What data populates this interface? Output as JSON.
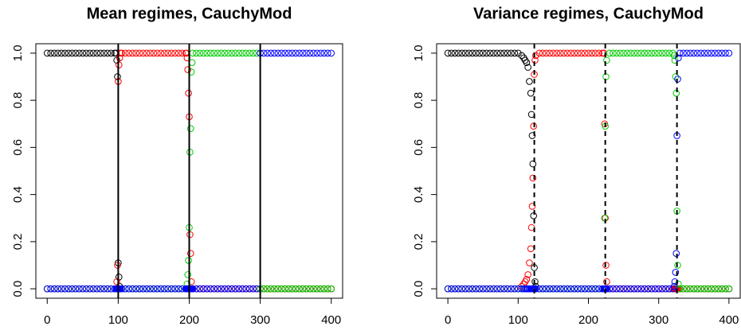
{
  "chart_data": [
    {
      "type": "scatter",
      "title": "Mean regimes, CauchyMod",
      "x": [
        0,
        5,
        10,
        15,
        20,
        25,
        30,
        35,
        40,
        45,
        50,
        55,
        60,
        65,
        70,
        75,
        80,
        85,
        90,
        95,
        97,
        98,
        99,
        100,
        101,
        102,
        103,
        105,
        110,
        115,
        120,
        125,
        130,
        135,
        140,
        145,
        150,
        155,
        160,
        165,
        170,
        175,
        180,
        185,
        190,
        195,
        196,
        197,
        198,
        199,
        200,
        201,
        202,
        203,
        204,
        205,
        210,
        215,
        220,
        225,
        230,
        235,
        240,
        245,
        250,
        255,
        260,
        265,
        270,
        275,
        280,
        285,
        290,
        295,
        300,
        305,
        310,
        315,
        320,
        325,
        330,
        335,
        340,
        345,
        350,
        355,
        360,
        365,
        370,
        375,
        380,
        385,
        390,
        395,
        400
      ],
      "series": [
        {
          "color": "#000000",
          "values": [
            1,
            1,
            1,
            1,
            1,
            1,
            1,
            1,
            1,
            1,
            1,
            1,
            1,
            1,
            1,
            1,
            1,
            1,
            1,
            1,
            1,
            0.97,
            0.9,
            0.11,
            0.05,
            0.01,
            0,
            0,
            0,
            0,
            0,
            0,
            0,
            0,
            0,
            0,
            0,
            0,
            0,
            0,
            0,
            0,
            0,
            0,
            0,
            0,
            0,
            0,
            0,
            0,
            0,
            0,
            0,
            0,
            0,
            0,
            0,
            0,
            0,
            0,
            0,
            0,
            0,
            0,
            0,
            0,
            0,
            0,
            0,
            0,
            0,
            0,
            0,
            0,
            0,
            0,
            0,
            0,
            0,
            0,
            0,
            0,
            0,
            0,
            0,
            0,
            0,
            0,
            0,
            0,
            0,
            0,
            0,
            0,
            0
          ]
        },
        {
          "color": "#ff0000",
          "values": [
            0,
            0,
            0,
            0,
            0,
            0,
            0,
            0,
            0,
            0,
            0,
            0,
            0,
            0,
            0,
            0,
            0,
            0,
            0,
            0,
            0,
            0.03,
            0.1,
            0.88,
            0.95,
            0.98,
            1,
            1,
            1,
            1,
            1,
            1,
            1,
            1,
            1,
            1,
            1,
            1,
            1,
            1,
            1,
            1,
            1,
            1,
            1,
            1,
            1,
            0.98,
            0.93,
            0.83,
            0.73,
            0.23,
            0.15,
            0.03,
            0,
            0,
            0,
            0,
            0,
            0,
            0,
            0,
            0,
            0,
            0,
            0,
            0,
            0,
            0,
            0,
            0,
            0,
            0,
            0,
            0,
            0,
            0,
            0,
            0,
            0,
            0,
            0,
            0,
            0,
            0,
            0,
            0,
            0,
            0,
            0,
            0,
            0,
            0,
            0,
            0
          ]
        },
        {
          "color": "#00cd00",
          "values": [
            0,
            0,
            0,
            0,
            0,
            0,
            0,
            0,
            0,
            0,
            0,
            0,
            0,
            0,
            0,
            0,
            0,
            0,
            0,
            0,
            0,
            0,
            0,
            0,
            0,
            0,
            0,
            0,
            0,
            0,
            0,
            0,
            0,
            0,
            0,
            0,
            0,
            0,
            0,
            0,
            0,
            0,
            0,
            0,
            0,
            0,
            0,
            0.02,
            0.06,
            0.12,
            0.26,
            0.58,
            0.68,
            0.92,
            0.96,
            1,
            1,
            1,
            1,
            1,
            1,
            1,
            1,
            1,
            1,
            1,
            1,
            1,
            1,
            1,
            1,
            1,
            1,
            1,
            0,
            0,
            0,
            0,
            0,
            0,
            0,
            0,
            0,
            0,
            0,
            0,
            0,
            0,
            0,
            0,
            0,
            0,
            0,
            0,
            0
          ]
        },
        {
          "color": "#0000ff",
          "values": [
            0,
            0,
            0,
            0,
            0,
            0,
            0,
            0,
            0,
            0,
            0,
            0,
            0,
            0,
            0,
            0,
            0,
            0,
            0,
            0,
            0,
            0,
            0,
            0,
            0,
            0,
            0,
            0,
            0,
            0,
            0,
            0,
            0,
            0,
            0,
            0,
            0,
            0,
            0,
            0,
            0,
            0,
            0,
            0,
            0,
            0,
            0,
            0,
            0,
            0,
            0,
            0,
            0,
            0,
            0,
            0,
            0,
            0,
            0,
            0,
            0,
            0,
            0,
            0,
            0,
            0,
            0,
            0,
            0,
            0,
            0,
            0,
            0,
            0,
            1,
            1,
            1,
            1,
            1,
            1,
            1,
            1,
            1,
            1,
            1,
            1,
            1,
            1,
            1,
            1,
            1,
            1,
            1,
            1,
            1
          ]
        }
      ],
      "vlines": [
        100,
        200,
        300
      ],
      "vline_style": "solid",
      "xlim": [
        -16,
        416
      ],
      "ylim": [
        -0.04,
        1.04
      ],
      "xticks": [
        0,
        100,
        200,
        300,
        400
      ],
      "yticks": [
        {
          "value": 0,
          "label": "0.0"
        },
        {
          "value": 0.2,
          "label": "0.2"
        },
        {
          "value": 0.4,
          "label": "0.4"
        },
        {
          "value": 0.6,
          "label": "0.6"
        },
        {
          "value": 0.8,
          "label": "0.8"
        },
        {
          "value": 1,
          "label": "1.0"
        }
      ]
    },
    {
      "type": "scatter",
      "title": "Variance regimes, CauchyMod",
      "x": [
        0,
        5,
        10,
        15,
        20,
        25,
        30,
        35,
        40,
        45,
        50,
        55,
        60,
        65,
        70,
        75,
        80,
        85,
        90,
        95,
        100,
        105,
        108,
        110,
        112,
        114,
        116,
        118,
        119,
        120,
        121,
        122,
        123,
        124,
        125,
        130,
        135,
        140,
        145,
        150,
        155,
        160,
        165,
        170,
        175,
        180,
        185,
        190,
        195,
        200,
        205,
        210,
        215,
        220,
        222,
        223,
        224,
        225,
        226,
        230,
        235,
        240,
        245,
        250,
        255,
        260,
        265,
        270,
        275,
        280,
        285,
        290,
        295,
        300,
        305,
        310,
        315,
        320,
        322,
        323,
        324,
        325,
        326,
        327,
        328,
        330,
        335,
        340,
        345,
        350,
        355,
        360,
        365,
        370,
        375,
        380,
        385,
        390,
        395,
        400
      ],
      "series": [
        {
          "color": "#000000",
          "values": [
            1,
            1,
            1,
            1,
            1,
            1,
            1,
            1,
            1,
            1,
            1,
            1,
            1,
            1,
            1,
            1,
            1,
            1,
            1,
            1,
            1,
            0.99,
            0.98,
            0.97,
            0.96,
            0.94,
            0.88,
            0.83,
            0.74,
            0.65,
            0.53,
            0.31,
            0.09,
            0.03,
            0.01,
            0,
            0,
            0,
            0,
            0,
            0,
            0,
            0,
            0,
            0,
            0,
            0,
            0,
            0,
            0,
            0,
            0,
            0,
            0,
            0,
            0,
            0,
            0,
            0,
            0,
            0,
            0,
            0,
            0,
            0,
            0,
            0,
            0,
            0,
            0,
            0,
            0,
            0,
            0,
            0,
            0,
            0,
            0,
            0,
            0,
            0,
            0,
            0,
            0,
            0,
            0,
            0,
            0,
            0,
            0,
            0,
            0,
            0,
            0,
            0,
            0,
            0,
            0,
            0,
            0
          ]
        },
        {
          "color": "#ff0000",
          "values": [
            0,
            0,
            0,
            0,
            0,
            0,
            0,
            0,
            0,
            0,
            0,
            0,
            0,
            0,
            0,
            0,
            0,
            0,
            0,
            0,
            0,
            0.01,
            0.02,
            0.03,
            0.04,
            0.06,
            0.11,
            0.17,
            0.26,
            0.35,
            0.47,
            0.69,
            0.91,
            0.97,
            0.99,
            1,
            1,
            1,
            1,
            1,
            1,
            1,
            1,
            1,
            1,
            1,
            1,
            1,
            1,
            1,
            1,
            1,
            1,
            1,
            1,
            0.7,
            0.3,
            0.1,
            0.03,
            0,
            0,
            0,
            0,
            0,
            0,
            0,
            0,
            0,
            0,
            0,
            0,
            0,
            0,
            0,
            0,
            0,
            0,
            0,
            0,
            0,
            0,
            0,
            0,
            0,
            0,
            0,
            0,
            0,
            0,
            0,
            0,
            0,
            0,
            0,
            0,
            0,
            0,
            0,
            0,
            0
          ]
        },
        {
          "color": "#00cd00",
          "values": [
            0,
            0,
            0,
            0,
            0,
            0,
            0,
            0,
            0,
            0,
            0,
            0,
            0,
            0,
            0,
            0,
            0,
            0,
            0,
            0,
            0,
            0,
            0,
            0,
            0,
            0,
            0,
            0,
            0,
            0,
            0,
            0,
            0,
            0,
            0,
            0,
            0,
            0,
            0,
            0,
            0,
            0,
            0,
            0,
            0,
            0,
            0,
            0,
            0,
            0,
            0,
            0,
            0,
            0,
            0,
            0.3,
            0.69,
            0.9,
            0.97,
            1,
            1,
            1,
            1,
            1,
            1,
            1,
            1,
            1,
            1,
            1,
            1,
            1,
            1,
            1,
            1,
            1,
            1,
            1,
            0.99,
            0.97,
            0.9,
            0.83,
            0.33,
            0.1,
            0.02,
            0,
            0,
            0,
            0,
            0,
            0,
            0,
            0,
            0,
            0,
            0,
            0,
            0,
            0,
            0
          ]
        },
        {
          "color": "#0000ff",
          "values": [
            0,
            0,
            0,
            0,
            0,
            0,
            0,
            0,
            0,
            0,
            0,
            0,
            0,
            0,
            0,
            0,
            0,
            0,
            0,
            0,
            0,
            0,
            0,
            0,
            0,
            0,
            0,
            0,
            0,
            0,
            0,
            0,
            0,
            0,
            0,
            0,
            0,
            0,
            0,
            0,
            0,
            0,
            0,
            0,
            0,
            0,
            0,
            0,
            0,
            0,
            0,
            0,
            0,
            0,
            0,
            0,
            0,
            0,
            0,
            0,
            0,
            0,
            0,
            0,
            0,
            0,
            0,
            0,
            0,
            0,
            0,
            0,
            0,
            0,
            0,
            0,
            0,
            0,
            0.01,
            0.03,
            0.07,
            0.15,
            0.65,
            0.89,
            0.98,
            1,
            1,
            1,
            1,
            1,
            1,
            1,
            1,
            1,
            1,
            1,
            1,
            1,
            1,
            1
          ]
        }
      ],
      "vlines": [
        123,
        224,
        326
      ],
      "vline_style": "dashed",
      "xlim": [
        -16,
        416
      ],
      "ylim": [
        -0.04,
        1.04
      ],
      "xticks": [
        0,
        100,
        200,
        300,
        400
      ],
      "yticks": [
        {
          "value": 0,
          "label": "0.0"
        },
        {
          "value": 0.2,
          "label": "0.2"
        },
        {
          "value": 0.4,
          "label": "0.4"
        },
        {
          "value": 0.6,
          "label": "0.6"
        },
        {
          "value": 0.8,
          "label": "0.8"
        },
        {
          "value": 1,
          "label": "1.0"
        }
      ]
    }
  ]
}
